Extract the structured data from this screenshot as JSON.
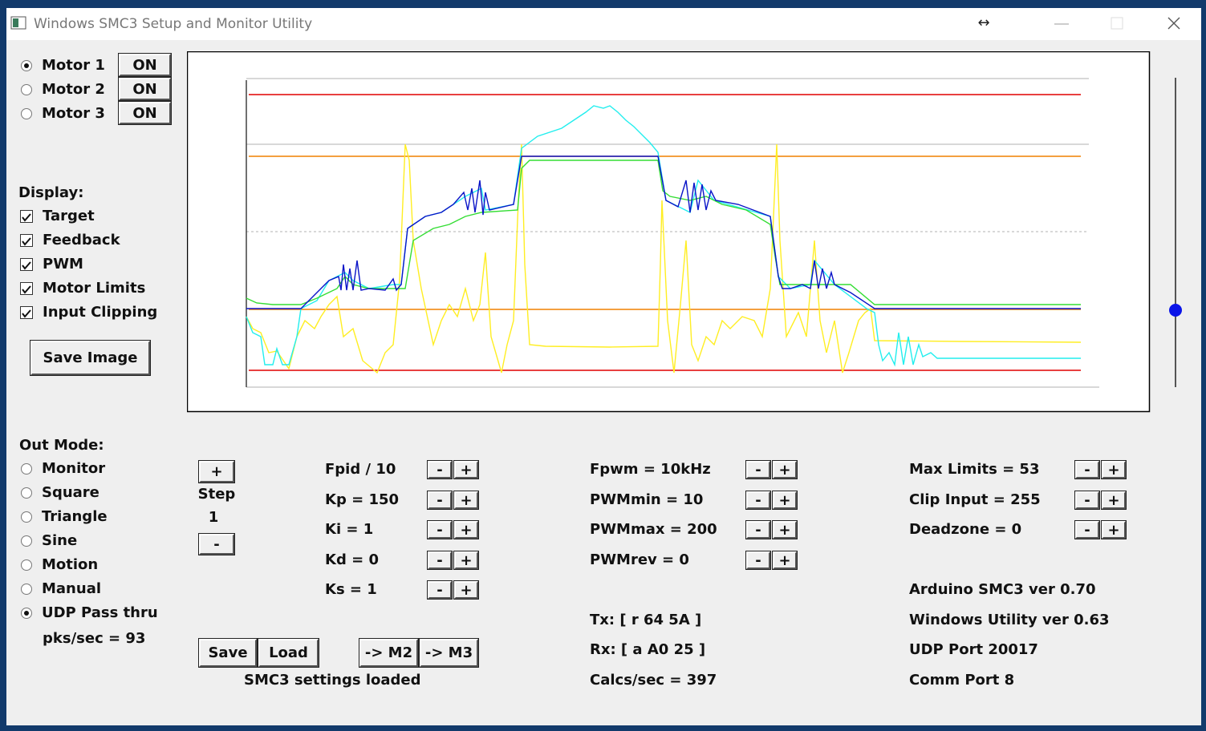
{
  "window": {
    "title": "Windows SMC3 Setup and Monitor Utility"
  },
  "motors": [
    {
      "label": "Motor 1",
      "button": "ON",
      "selected": true
    },
    {
      "label": "Motor 2",
      "button": "ON",
      "selected": false
    },
    {
      "label": "Motor 3",
      "button": "ON",
      "selected": false
    }
  ],
  "display": {
    "heading": "Display:",
    "options": [
      {
        "label": "Target",
        "checked": true
      },
      {
        "label": "Feedback",
        "checked": true
      },
      {
        "label": "PWM",
        "checked": true
      },
      {
        "label": "Motor Limits",
        "checked": true
      },
      {
        "label": "Input Clipping",
        "checked": true
      }
    ]
  },
  "save_image": "Save Image",
  "out_mode": {
    "heading": "Out Mode:",
    "options": [
      {
        "label": "Monitor",
        "selected": false
      },
      {
        "label": "Square",
        "selected": false
      },
      {
        "label": "Triangle",
        "selected": false
      },
      {
        "label": "Sine",
        "selected": false
      },
      {
        "label": "Motion",
        "selected": false
      },
      {
        "label": "Manual",
        "selected": false
      },
      {
        "label": "UDP Pass thru",
        "selected": true
      }
    ],
    "rate": "pks/sec = 93"
  },
  "step": {
    "plus": "+",
    "label": "Step",
    "value": "1",
    "minus": "-"
  },
  "adjust": {
    "minus": "-",
    "plus": "+"
  },
  "pid": [
    "Fpid / 10",
    "Kp = 150",
    "Ki = 1",
    "Kd = 0",
    "Ks = 1"
  ],
  "pwm": [
    "Fpwm = 10kHz",
    "PWMmin = 10",
    "PWMmax = 200",
    "PWMrev = 0"
  ],
  "limits": [
    "Max Limits = 53",
    "Clip Input = 255",
    "Deadzone = 0"
  ],
  "actions": {
    "save": "Save",
    "load": "Load",
    "to_m2": "-> M2",
    "to_m3": "-> M3",
    "message": "SMC3 settings loaded"
  },
  "comm": [
    "Tx: [ r 64 5A ]",
    "Rx: [ a A0 25 ]",
    "Calcs/sec = 397"
  ],
  "info": [
    "Arduino SMC3 ver 0.70",
    "Windows Utility ver 0.63",
    "UDP Port 20017",
    "Comm Port 8"
  ]
}
